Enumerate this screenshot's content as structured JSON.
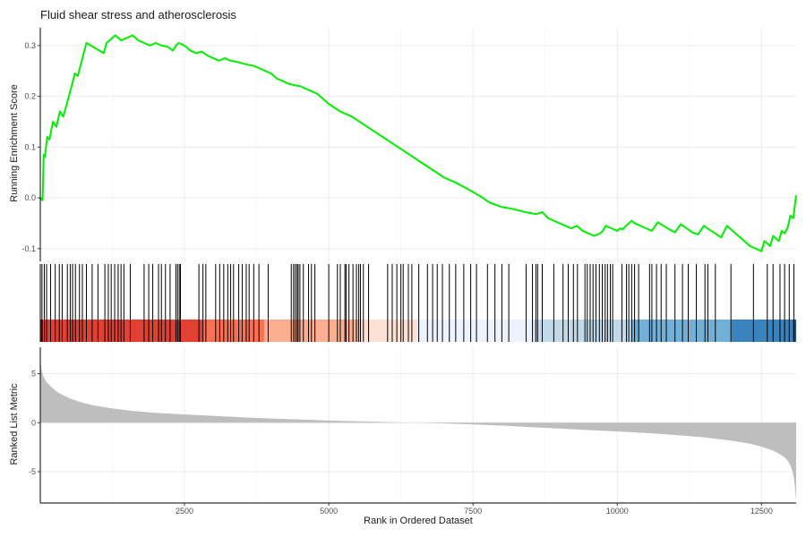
{
  "chart_data": {
    "type": "line",
    "title": "Fluid shear stress and atherosclerosis",
    "xlabel": "Rank in Ordered Dataset",
    "ylabel_top": "Running Enrichment Score",
    "ylabel_bottom": "Ranked List Metric",
    "x_range": [
      1,
      13100
    ],
    "x_ticks": [
      2500,
      5000,
      7500,
      10000,
      12500
    ],
    "x_tick_labels": [
      "2500",
      "5000",
      "7500",
      "10000",
      "12500"
    ],
    "es_ylim": [
      -0.125,
      0.335
    ],
    "es_ticks": [
      -0.1,
      0.0,
      0.1,
      0.2,
      0.3
    ],
    "es_tick_labels": [
      "-0.1",
      "0.0",
      "0.1",
      "0.2",
      "0.3"
    ],
    "metric_ylim": [
      -8.2,
      7.7
    ],
    "metric_ticks": [
      -5,
      0,
      5
    ],
    "metric_tick_labels": [
      "-5",
      "0",
      "5"
    ],
    "es_color": "#00ee00",
    "metric_fill_color": "#bebebe",
    "grid": true,
    "running_es": {
      "x": [
        1,
        40,
        60,
        80,
        120,
        160,
        220,
        280,
        340,
        400,
        460,
        520,
        600,
        650,
        720,
        800,
        1100,
        1150,
        1200,
        1300,
        1400,
        1500,
        1600,
        1650,
        1700,
        1800,
        1900,
        2000,
        2100,
        2200,
        2300,
        2350,
        2400,
        2500,
        2600,
        2700,
        2800,
        2900,
        3000,
        3100,
        3200,
        3300,
        3400,
        3500,
        3600,
        3700,
        3800,
        3900,
        4000,
        4100,
        4200,
        4300,
        4400,
        4500,
        4600,
        4700,
        4800,
        4900,
        5000,
        5200,
        5400,
        5600,
        5800,
        6000,
        6200,
        6400,
        6600,
        6800,
        7000,
        7200,
        7400,
        7600,
        7800,
        8000,
        8200,
        8400,
        8600,
        8700,
        8800,
        8900,
        9000,
        9100,
        9200,
        9300,
        9400,
        9500,
        9600,
        9700,
        9750,
        9800,
        9900,
        10000,
        10050,
        10100,
        10150,
        10200,
        10250,
        10300,
        10400,
        10500,
        10600,
        10700,
        10800,
        10900,
        11000,
        11100,
        11200,
        11300,
        11400,
        11500,
        11600,
        11700,
        11800,
        11900,
        12000,
        12100,
        12200,
        12300,
        12400,
        12500,
        12550,
        12600,
        12650,
        12700,
        12750,
        12800,
        12850,
        12900,
        12950,
        13000,
        13050,
        13100
      ],
      "y": [
        0.0,
        -0.005,
        0.085,
        0.08,
        0.12,
        0.115,
        0.15,
        0.14,
        0.17,
        0.16,
        0.185,
        0.21,
        0.245,
        0.24,
        0.27,
        0.305,
        0.285,
        0.305,
        0.31,
        0.32,
        0.31,
        0.315,
        0.32,
        0.315,
        0.31,
        0.305,
        0.3,
        0.305,
        0.3,
        0.298,
        0.29,
        0.3,
        0.305,
        0.3,
        0.29,
        0.285,
        0.288,
        0.28,
        0.275,
        0.27,
        0.275,
        0.27,
        0.268,
        0.265,
        0.262,
        0.26,
        0.255,
        0.25,
        0.245,
        0.235,
        0.23,
        0.225,
        0.222,
        0.22,
        0.215,
        0.21,
        0.205,
        0.195,
        0.185,
        0.17,
        0.16,
        0.145,
        0.13,
        0.115,
        0.1,
        0.085,
        0.07,
        0.055,
        0.04,
        0.03,
        0.018,
        0.005,
        -0.01,
        -0.018,
        -0.022,
        -0.028,
        -0.032,
        -0.028,
        -0.04,
        -0.045,
        -0.05,
        -0.055,
        -0.06,
        -0.055,
        -0.065,
        -0.07,
        -0.075,
        -0.07,
        -0.065,
        -0.055,
        -0.06,
        -0.065,
        -0.06,
        -0.062,
        -0.055,
        -0.05,
        -0.045,
        -0.05,
        -0.055,
        -0.06,
        -0.065,
        -0.048,
        -0.055,
        -0.062,
        -0.068,
        -0.052,
        -0.06,
        -0.068,
        -0.072,
        -0.055,
        -0.063,
        -0.07,
        -0.078,
        -0.055,
        -0.065,
        -0.075,
        -0.085,
        -0.095,
        -0.1,
        -0.105,
        -0.085,
        -0.09,
        -0.095,
        -0.075,
        -0.08,
        -0.085,
        -0.065,
        -0.07,
        -0.06,
        -0.035,
        -0.04,
        0.005
      ]
    },
    "hits": [
      30,
      70,
      110,
      180,
      260,
      330,
      380,
      470,
      520,
      560,
      610,
      680,
      730,
      800,
      900,
      1000,
      1120,
      1180,
      1230,
      1290,
      1350,
      1400,
      1450,
      1560,
      1800,
      1880,
      1950,
      2050,
      2100,
      2170,
      2250,
      2350,
      2380,
      2410,
      2430,
      2750,
      2820,
      2870,
      3040,
      3110,
      3180,
      3250,
      3300,
      3350,
      3440,
      3500,
      3570,
      3620,
      3700,
      3790,
      3950,
      4350,
      4390,
      4420,
      4450,
      4470,
      4500,
      4560,
      4650,
      4700,
      4760,
      5000,
      5150,
      5200,
      5280,
      5300,
      5350,
      5420,
      5480,
      5520,
      5550,
      5600,
      5690,
      6020,
      6100,
      6180,
      6250,
      6290,
      6380,
      6440,
      6560,
      6710,
      6800,
      6880,
      6970,
      7090,
      7200,
      7340,
      7460,
      7560,
      7750,
      7880,
      8000,
      8120,
      8420,
      8530,
      8590,
      8620,
      8700,
      8900,
      9060,
      9150,
      9240,
      9310,
      9440,
      9480,
      9530,
      9580,
      9630,
      9690,
      9740,
      9790,
      9830,
      9880,
      9920,
      10080,
      10160,
      10200,
      10250,
      10300,
      10370,
      10560,
      10600,
      10680,
      10760,
      10850,
      11000,
      11130,
      11230,
      11370,
      11520,
      11570,
      11700,
      11970,
      12360,
      12600,
      12700,
      12820,
      12900,
      12980,
      13060
    ],
    "rank_bands": [
      {
        "from": 1,
        "to": 50,
        "color": "#a50f15"
      },
      {
        "from": 50,
        "to": 2830,
        "color": "#e34034"
      },
      {
        "from": 2830,
        "to": 3880,
        "color": "#fc6f50"
      },
      {
        "from": 3880,
        "to": 5520,
        "color": "#fcae91"
      },
      {
        "from": 5520,
        "to": 6540,
        "color": "#fde1d4"
      },
      {
        "from": 6540,
        "to": 8550,
        "color": "#eef2fc"
      },
      {
        "from": 8550,
        "to": 10250,
        "color": "#c2d9ea"
      },
      {
        "from": 10250,
        "to": 11980,
        "color": "#72b0d8"
      },
      {
        "from": 11980,
        "to": 13040,
        "color": "#3b83be"
      },
      {
        "from": 13040,
        "to": 13100,
        "color": "#08519c"
      }
    ],
    "ranked_metric": {
      "x": [
        1,
        20,
        50,
        100,
        200,
        300,
        400,
        500,
        700,
        900,
        1200,
        1600,
        2000,
        2500,
        3000,
        3500,
        4000,
        4500,
        5000,
        5500,
        6000,
        6500,
        6800,
        7000,
        7500,
        8000,
        8500,
        9000,
        9500,
        10000,
        10500,
        11000,
        11500,
        12000,
        12300,
        12500,
        12700,
        12800,
        12900,
        12950,
        13000,
        13030,
        13060,
        13080,
        13100
      ],
      "y": [
        6.6,
        5.5,
        4.8,
        4.2,
        3.6,
        3.1,
        2.8,
        2.5,
        2.1,
        1.8,
        1.5,
        1.2,
        1.0,
        0.85,
        0.7,
        0.55,
        0.42,
        0.32,
        0.22,
        0.14,
        0.07,
        0.0,
        -0.04,
        -0.08,
        -0.18,
        -0.3,
        -0.45,
        -0.6,
        -0.75,
        -0.9,
        -1.05,
        -1.25,
        -1.5,
        -1.85,
        -2.15,
        -2.45,
        -2.85,
        -3.15,
        -3.55,
        -3.85,
        -4.35,
        -4.85,
        -5.6,
        -6.6,
        -8.0
      ]
    }
  }
}
